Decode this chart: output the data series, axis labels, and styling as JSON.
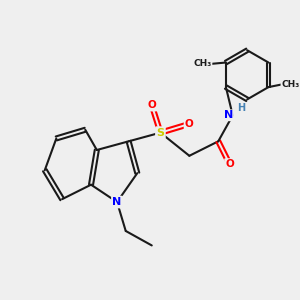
{
  "background_color": "#efefef",
  "bond_color": "#1a1a1a",
  "atom_colors": {
    "N": "#0000ff",
    "H": "#4682b4",
    "O": "#ff0000",
    "S": "#cccc00",
    "C": "#1a1a1a"
  },
  "figsize": [
    3.0,
    3.0
  ],
  "dpi": 100,
  "lw": 1.5
}
